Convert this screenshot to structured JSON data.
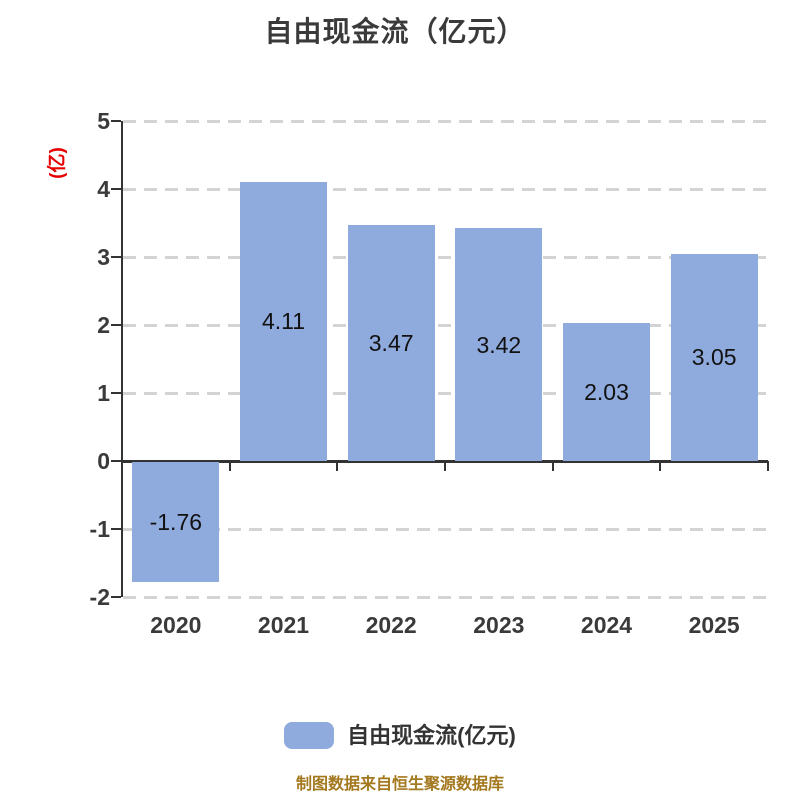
{
  "title": "自由现金流（亿元）",
  "y_axis": {
    "unit_label": "(亿)",
    "tick_labels": [
      "5",
      "4",
      "3",
      "2",
      "1",
      "0",
      "-1",
      "-2"
    ]
  },
  "legend": {
    "label": "自由现金流(亿元)",
    "swatch_color": "#8faadc"
  },
  "footer": "制图数据来自恒生聚源数据库",
  "colors": {
    "bar": "#8faadc",
    "axis": "#333333",
    "grid": "#d3d3d3",
    "unit_label": "#e60000",
    "footer": "#a3781e"
  },
  "chart_data": {
    "type": "bar",
    "title": "自由现金流（亿元）",
    "ylabel": "(亿)",
    "categories": [
      "2020",
      "2021",
      "2022",
      "2023",
      "2024",
      "2025"
    ],
    "values": [
      -1.76,
      4.11,
      3.47,
      3.42,
      2.03,
      3.05
    ],
    "value_labels": [
      "-1.76",
      "4.11",
      "3.47",
      "3.42",
      "2.03",
      "3.05"
    ],
    "ylim": [
      -2,
      5
    ],
    "yticks": [
      5,
      4,
      3,
      2,
      1,
      0,
      -1,
      -2
    ],
    "grid": "horizontal-dashed",
    "legend_entries": [
      "自由现金流(亿元)"
    ],
    "legend_position": "bottom"
  }
}
